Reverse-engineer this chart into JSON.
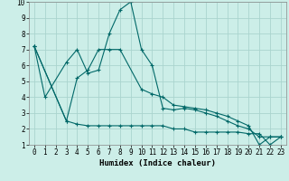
{
  "background_color": "#cceee8",
  "grid_color": "#aad4ce",
  "line_color": "#006868",
  "line1": {
    "x": [
      0,
      1,
      3,
      4,
      5,
      6,
      7,
      8,
      9,
      10,
      11,
      12,
      13,
      14,
      15,
      16,
      17,
      18,
      19,
      20,
      21,
      22,
      23
    ],
    "y": [
      7.2,
      4.0,
      6.2,
      7.0,
      5.5,
      5.7,
      8.0,
      9.5,
      10.0,
      7.0,
      6.0,
      3.3,
      3.2,
      3.3,
      3.2,
      3.0,
      2.8,
      2.5,
      2.2,
      2.0,
      1.5,
      1.5,
      1.5
    ]
  },
  "line2": {
    "x": [
      0,
      3,
      4,
      5,
      6,
      7,
      8,
      10,
      11,
      12,
      13,
      14,
      15,
      16,
      17,
      18,
      19,
      20,
      21,
      22,
      23
    ],
    "y": [
      7.2,
      2.5,
      5.2,
      5.7,
      7.0,
      7.0,
      7.0,
      4.5,
      4.2,
      4.0,
      3.5,
      3.4,
      3.3,
      3.2,
      3.0,
      2.8,
      2.5,
      2.2,
      1.0,
      1.5,
      1.5
    ]
  },
  "line3": {
    "x": [
      0,
      3,
      4,
      5,
      6,
      7,
      8,
      9,
      10,
      11,
      12,
      13,
      14,
      15,
      16,
      17,
      18,
      19,
      20,
      21,
      22,
      23
    ],
    "y": [
      7.2,
      2.5,
      2.3,
      2.2,
      2.2,
      2.2,
      2.2,
      2.2,
      2.2,
      2.2,
      2.2,
      2.0,
      2.0,
      1.8,
      1.8,
      1.8,
      1.8,
      1.8,
      1.7,
      1.7,
      1.0,
      1.5
    ]
  },
  "xlim": [
    -0.5,
    23.5
  ],
  "ylim": [
    1,
    10
  ],
  "xlabel": "Humidex (Indice chaleur)",
  "xticks": [
    0,
    1,
    2,
    3,
    4,
    5,
    6,
    7,
    8,
    9,
    10,
    11,
    12,
    13,
    14,
    15,
    16,
    17,
    18,
    19,
    20,
    21,
    22,
    23
  ],
  "yticks": [
    1,
    2,
    3,
    4,
    5,
    6,
    7,
    8,
    9,
    10
  ],
  "xlabel_fontsize": 6.5,
  "tick_fontsize": 5.5
}
